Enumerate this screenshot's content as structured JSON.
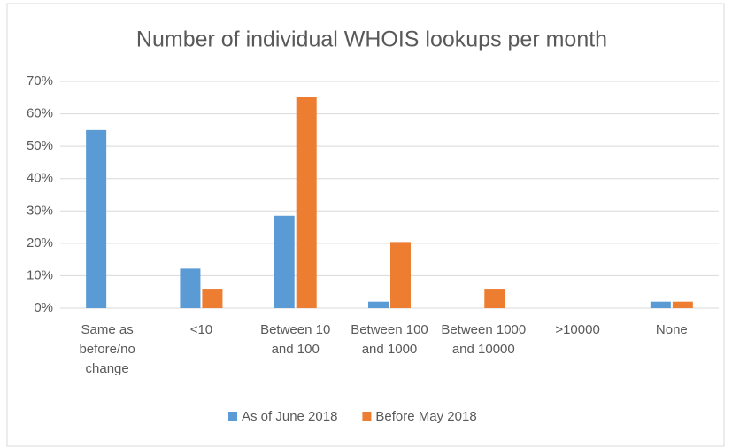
{
  "chart_data": {
    "type": "bar",
    "title": "Number of individual WHOIS lookups per month",
    "categories": [
      "Same as before/no change",
      "<10",
      "Between 10 and 100",
      "Between 100 and 1000",
      "Between 1000 and 10000",
      ">10000",
      "None"
    ],
    "series": [
      {
        "name": "As of June 2018",
        "color": "#5b9bd5",
        "values": [
          55,
          12.2,
          28.5,
          2,
          0,
          0,
          2
        ]
      },
      {
        "name": "Before May 2018",
        "color": "#ed7d31",
        "values": [
          0,
          6,
          65.3,
          20.4,
          6,
          0,
          2
        ]
      }
    ],
    "ylim": [
      0,
      70
    ],
    "yticks": [
      {
        "value": 0,
        "label": "0%"
      },
      {
        "value": 10,
        "label": "10%"
      },
      {
        "value": 20,
        "label": "20%"
      },
      {
        "value": 30,
        "label": "30%"
      },
      {
        "value": 40,
        "label": "40%"
      },
      {
        "value": 50,
        "label": "50%"
      },
      {
        "value": 60,
        "label": "60%"
      },
      {
        "value": 70,
        "label": "70%"
      }
    ],
    "grid": true,
    "legend": "bottom"
  }
}
